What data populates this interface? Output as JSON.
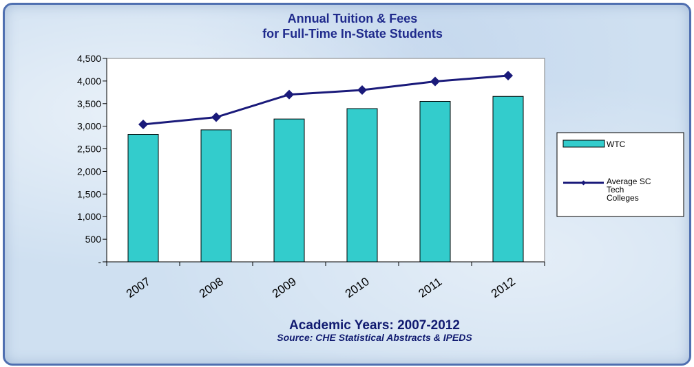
{
  "chart_data": {
    "type": "bar",
    "title_lines": [
      "Annual Tuition & Fees",
      "for Full-Time In-State Students"
    ],
    "categories": [
      "2007",
      "2008",
      "2009",
      "2010",
      "2011",
      "2012"
    ],
    "ylim": [
      0,
      4500
    ],
    "yticks": [
      0,
      500,
      1000,
      1500,
      2000,
      2500,
      3000,
      3500,
      4000,
      4500
    ],
    "ytick_labels": [
      "-",
      "500",
      "1,000",
      "1,500",
      "2,000",
      "2,500",
      "3,000",
      "3,500",
      "4,000",
      "4,500"
    ],
    "series": [
      {
        "name": "WTC",
        "type": "bar",
        "color": "#33cccc",
        "values": [
          2820,
          2920,
          3160,
          3390,
          3550,
          3660
        ]
      },
      {
        "name_lines": [
          "Average SC",
          "Tech",
          "Colleges"
        ],
        "type": "line",
        "color": "#1a1a7a",
        "values": [
          3040,
          3200,
          3700,
          3800,
          3990,
          4120
        ]
      }
    ],
    "grid": false,
    "legend_position": "right",
    "footer": {
      "caption": "Academic Years: 2007-2012",
      "source": "Source: CHE Statistical  Abstracts  & IPEDS"
    }
  }
}
